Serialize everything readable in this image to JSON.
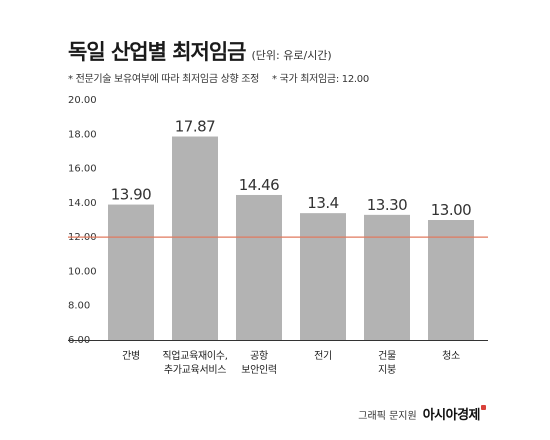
{
  "title": "독일 산업별 최저임금",
  "unit_note": "(단위: 유로/시간)",
  "notes": [
    "* 전문기술 보유여부에 따라 최저임금 상향 조정",
    "* 국가 최저임금: 12.00"
  ],
  "credit": {
    "label": "그래픽 문지원",
    "brand": "아시아경제"
  },
  "colors": {
    "bar": "#b3b3b3",
    "reference_line": "#e07a5f",
    "axis": "#333333"
  },
  "chart_data": {
    "type": "bar",
    "categories": [
      [
        "간병"
      ],
      [
        "직업교육재이수,",
        "추가교육서비스"
      ],
      [
        "공항",
        "보안인력"
      ],
      [
        "전기"
      ],
      [
        "건물",
        "지붕"
      ],
      [
        "청소"
      ]
    ],
    "values": [
      13.9,
      17.87,
      14.46,
      13.4,
      13.3,
      13.0
    ],
    "value_labels": [
      "13.90",
      "17.87",
      "14.46",
      "13.4",
      "13.30",
      "13.00"
    ],
    "yticks": [
      "6.00",
      "8.00",
      "10.00",
      "12.00",
      "14.00",
      "16.00",
      "18.00",
      "20.00"
    ],
    "ylim": [
      6,
      20
    ],
    "reference_line": 12.0,
    "grid": false
  }
}
